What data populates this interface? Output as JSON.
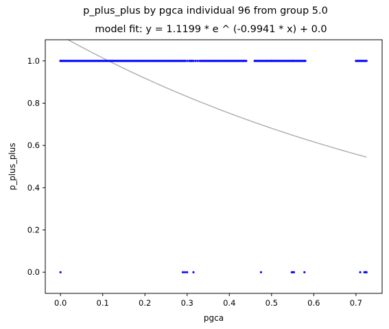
{
  "chart_data": {
    "type": "scatter",
    "title": "p_plus_plus by pgca individual 96 from group 5.0",
    "subtitle": "model fit: y = 1.1199 * e ^ (-0.9941 * x) + 0.0",
    "xlabel": "pgca",
    "ylabel": "p_plus_plus",
    "xlim": [
      -0.036,
      0.762
    ],
    "ylim": [
      -0.1,
      1.1
    ],
    "xticks": [
      "0.0",
      "0.1",
      "0.2",
      "0.3",
      "0.4",
      "0.5",
      "0.6",
      "0.7"
    ],
    "yticks": [
      "0.0",
      "0.2",
      "0.4",
      "0.6",
      "0.8",
      "1.0"
    ],
    "grid": false,
    "legend": "none",
    "colors": {
      "points": "#0000ff",
      "fit": "#b0b0b0"
    },
    "series": [
      {
        "kind": "points",
        "ones_ranges": [
          [
            0.0,
            0.295
          ],
          [
            0.305,
            0.315
          ],
          [
            0.33,
            0.44
          ],
          [
            0.46,
            0.58
          ],
          [
            0.7,
            0.725
          ]
        ],
        "ones_step": 0.0025,
        "ones_extra": [
          0.0,
          0.295,
          0.3,
          0.31,
          0.32,
          0.325,
          0.5,
          0.55,
          0.578
        ],
        "zeros": [
          0.0,
          0.29,
          0.295,
          0.3,
          0.315,
          0.475,
          0.548,
          0.55,
          0.553,
          0.578,
          0.71,
          0.72,
          0.722,
          0.724,
          0.725
        ]
      },
      {
        "kind": "fit",
        "a": 1.1199,
        "b": -0.9941,
        "c": 0.0,
        "x_range": [
          0.0,
          0.725
        ]
      }
    ]
  }
}
